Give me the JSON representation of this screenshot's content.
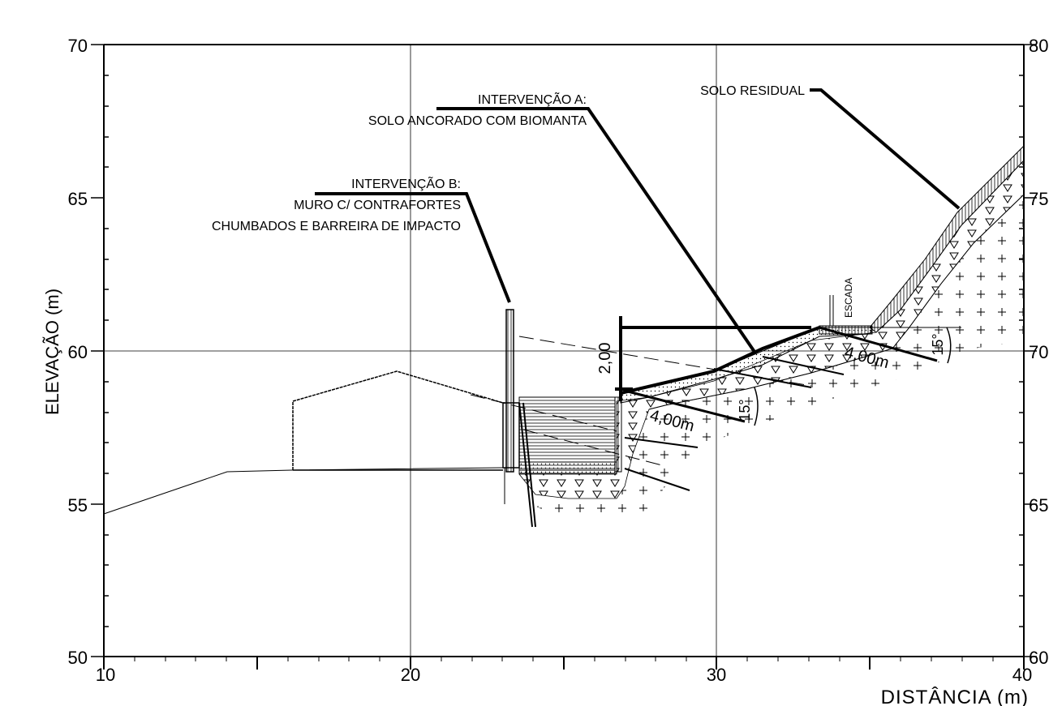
{
  "axes": {
    "y_title": "ELEVAÇÃO (m)",
    "x_title": "DISTÂNCIA  (m)",
    "y_left_ticks": [
      "70",
      "65",
      "60",
      "55",
      "50"
    ],
    "y_right_ticks": [
      "80",
      "75",
      "70",
      "65",
      "60"
    ],
    "x_ticks": [
      "10",
      "20",
      "30",
      "40"
    ]
  },
  "annotations": {
    "intervention_a_line1": "INTERVENÇÃO A:",
    "intervention_a_line2": "SOLO ANCORADO COM BIOMANTA",
    "intervention_b_line1": "INTERVENÇÃO B:",
    "intervention_b_line2": "MURO C/ CONTRAFORTES",
    "intervention_b_line3": "CHUMBADOS E BARREIRA DE IMPACTO",
    "residual_soil": "SOLO RESIDUAL",
    "stair": "ESCADA",
    "dim_height": "2,00",
    "anchor_upper": "4,00m",
    "anchor_lower": "4,00m",
    "angle_upper": "15°",
    "angle_lower": "15°"
  }
}
